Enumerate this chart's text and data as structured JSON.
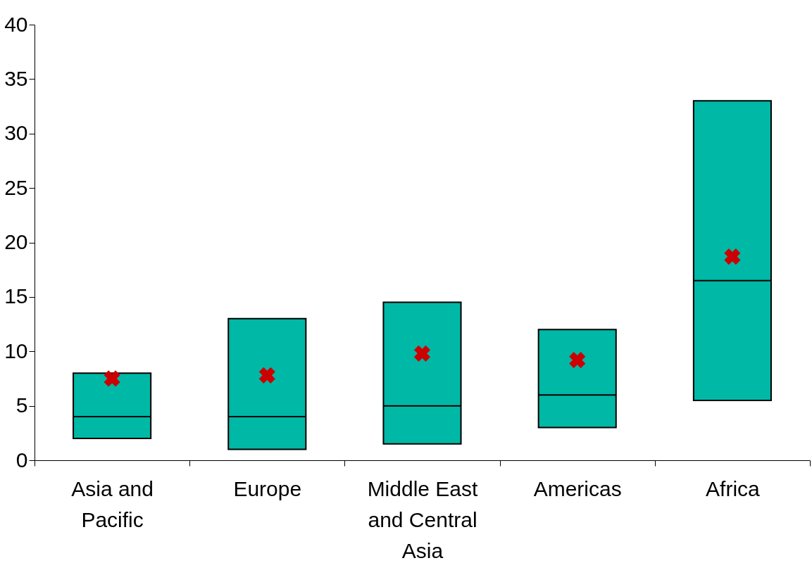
{
  "chart_data": {
    "type": "box",
    "categories": [
      "Asia and Pacific",
      "Europe",
      "Middle East and Central Asia",
      "Americas",
      "Africa"
    ],
    "boxes": [
      {
        "low": 2,
        "q1": 2,
        "median": 4,
        "q3": 8,
        "high": 8
      },
      {
        "low": 1,
        "q1": 1,
        "median": 4,
        "q3": 13,
        "high": 13
      },
      {
        "low": 1.5,
        "q1": 1.5,
        "median": 5,
        "q3": 14.5,
        "high": 14.5
      },
      {
        "low": 3,
        "q1": 3,
        "median": 6,
        "q3": 12,
        "high": 12
      },
      {
        "low": 5.5,
        "q1": 5.5,
        "median": 16.5,
        "q3": 33,
        "high": 33
      }
    ],
    "color": "#00b8a6",
    "series": [
      {
        "type": "scatter",
        "x": [
          "Asia and Pacific",
          "Europe",
          "Middle East and Central Asia",
          "Americas",
          "Africa"
        ],
        "values": [
          7.5,
          7.8,
          9.8,
          9.2,
          18.7
        ],
        "color": "#cc0000"
      }
    ],
    "marker": "cross",
    "ylim": [
      0,
      40
    ],
    "yticks": [
      0,
      5,
      10,
      15,
      20,
      25,
      30,
      35,
      40
    ],
    "grid": false
  }
}
